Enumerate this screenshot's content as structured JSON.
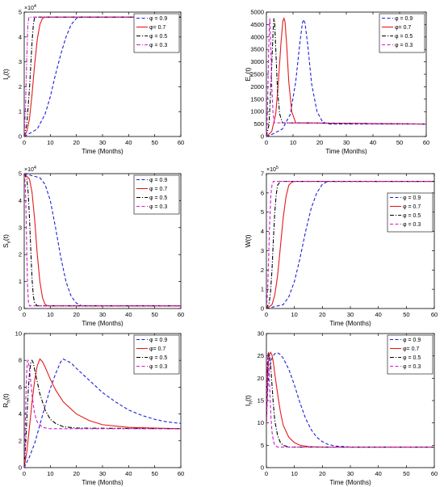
{
  "chart_data": [
    {
      "type": "line",
      "panel": "I_v",
      "xlabel": "Time (Months)",
      "ylabel_main": "I",
      "ylabel_sub": "v",
      "ylabel_tail": "(t)",
      "exponent": "×10",
      "exponent_power": "4",
      "xlim": [
        0,
        60
      ],
      "ylim": [
        0,
        5
      ],
      "xticks": [
        0,
        10,
        20,
        30,
        40,
        50,
        60
      ],
      "yticks": [
        0,
        1,
        2,
        3,
        4,
        5
      ],
      "legend_position": "top-right",
      "series": [
        {
          "name": "φ = 0.9",
          "color": "#1f1fd6",
          "dash": "dash",
          "x": [
            0,
            5,
            8,
            10,
            12,
            14,
            16,
            18,
            20,
            22,
            24,
            60
          ],
          "y": [
            0,
            0.3,
            0.9,
            1.6,
            2.5,
            3.3,
            4.0,
            4.5,
            4.75,
            4.8,
            4.8,
            4.8
          ]
        },
        {
          "name": "φ= 0.7",
          "color": "#e41a1a",
          "dash": "solid",
          "x": [
            0,
            1,
            2,
            3,
            4,
            5,
            6,
            7,
            8,
            9,
            60
          ],
          "y": [
            0,
            0.2,
            0.7,
            1.7,
            2.9,
            3.9,
            4.5,
            4.75,
            4.8,
            4.8,
            4.8
          ]
        },
        {
          "name": "φ = 0.5",
          "color": "#000000",
          "dash": "dashdot",
          "x": [
            0,
            1,
            2,
            3,
            3.5,
            4,
            60
          ],
          "y": [
            0,
            0.5,
            1.9,
            3.8,
            4.5,
            4.8,
            4.8
          ]
        },
        {
          "name": "φ = 0.3",
          "color": "#d01ad0",
          "dash": "dashdot",
          "x": [
            0,
            0.5,
            1,
            1.4,
            1.8,
            60
          ],
          "y": [
            0,
            1.2,
            3.2,
            4.5,
            4.8,
            4.8
          ]
        }
      ]
    },
    {
      "type": "line",
      "panel": "E_v",
      "xlabel": "Time (Months)",
      "ylabel_main": "E",
      "ylabel_sub": "v",
      "ylabel_tail": "(t)",
      "exponent": "",
      "exponent_power": "",
      "xlim": [
        0,
        60
      ],
      "ylim": [
        0,
        5000
      ],
      "xticks": [
        0,
        10,
        20,
        30,
        40,
        50,
        60
      ],
      "yticks": [
        0,
        500,
        1000,
        1500,
        2000,
        2500,
        3000,
        3500,
        4000,
        4500,
        5000
      ],
      "legend_position": "top-right",
      "series": [
        {
          "name": "φ = 0.9",
          "color": "#1f1fd6",
          "dash": "dash",
          "x": [
            0,
            2,
            6,
            9,
            11,
            12.5,
            13.5,
            14,
            14.5,
            15.5,
            17,
            19,
            21,
            23,
            60
          ],
          "y": [
            0,
            80,
            300,
            900,
            2200,
            3700,
            4550,
            4700,
            4550,
            3700,
            2100,
            1000,
            600,
            500,
            500
          ]
        },
        {
          "name": "φ= 0.7",
          "color": "#e41a1a",
          "dash": "solid",
          "x": [
            0,
            2,
            3.5,
            4.5,
            5.5,
            6.2,
            6.6,
            7,
            7.6,
            8.4,
            9.5,
            11,
            60
          ],
          "y": [
            0,
            200,
            900,
            2200,
            3800,
            4650,
            4750,
            4600,
            3700,
            2200,
            1000,
            550,
            500
          ]
        },
        {
          "name": "φ = 0.5",
          "color": "#000000",
          "dash": "dashdot",
          "x": [
            0,
            1,
            1.8,
            2.5,
            2.8,
            3.1,
            3.6,
            4.2,
            5,
            6,
            60
          ],
          "y": [
            0,
            500,
            2300,
            4200,
            4750,
            4600,
            3300,
            1800,
            900,
            550,
            500
          ]
        },
        {
          "name": "φ = 0.3",
          "color": "#d01ad0",
          "dash": "dash",
          "x": [
            0,
            0.4,
            0.8,
            1.1,
            1.3,
            1.6,
            2,
            2.5,
            3,
            60
          ],
          "y": [
            0,
            1000,
            3200,
            4500,
            4750,
            3800,
            2100,
            900,
            550,
            500
          ]
        }
      ]
    },
    {
      "type": "line",
      "panel": "S_v",
      "xlabel": "Time (Months)",
      "ylabel_main": "S",
      "ylabel_sub": "v",
      "ylabel_tail": "(t)",
      "exponent": "×10",
      "exponent_power": "4",
      "xlim": [
        0,
        60
      ],
      "ylim": [
        0,
        5
      ],
      "xticks": [
        0,
        10,
        20,
        30,
        40,
        50,
        60
      ],
      "yticks": [
        0,
        1,
        2,
        3,
        4,
        5
      ],
      "legend_position": "top-right",
      "series": [
        {
          "name": "φ = 0.9",
          "color": "#1f1fd6",
          "dash": "dash",
          "x": [
            0,
            6,
            8,
            10,
            12,
            14,
            16,
            18,
            20,
            22,
            60
          ],
          "y": [
            5,
            4.85,
            4.6,
            4.0,
            3.0,
            1.9,
            1.0,
            0.45,
            0.2,
            0.1,
            0.1
          ]
        },
        {
          "name": "φ = 0.7",
          "color": "#e41a1a",
          "dash": "solid",
          "x": [
            0,
            2,
            3,
            4,
            5,
            6,
            7,
            8,
            9,
            60
          ],
          "y": [
            5,
            4.8,
            4.3,
            3.3,
            2.0,
            1.0,
            0.4,
            0.15,
            0.1,
            0.1
          ]
        },
        {
          "name": "φ = 0.5",
          "color": "#000000",
          "dash": "dashdot",
          "x": [
            0,
            1,
            1.5,
            2,
            2.5,
            3,
            3.5,
            4,
            5,
            60
          ],
          "y": [
            5,
            4.8,
            4.3,
            3.4,
            2.2,
            1.1,
            0.45,
            0.2,
            0.1,
            0.1
          ]
        },
        {
          "name": "φ = 0.3",
          "color": "#d01ad0",
          "dash": "dash",
          "x": [
            0,
            0.4,
            0.7,
            1,
            1.3,
            1.6,
            2,
            60
          ],
          "y": [
            5,
            4.6,
            3.6,
            2.0,
            0.8,
            0.25,
            0.1,
            0.1
          ]
        }
      ]
    },
    {
      "type": "line",
      "panel": "W",
      "xlabel": "Time (Months)",
      "ylabel_main": "W",
      "ylabel_sub": "",
      "ylabel_tail": "(t)",
      "exponent": "×10",
      "exponent_power": "5",
      "xlim": [
        0,
        60
      ],
      "ylim": [
        0,
        7
      ],
      "xticks": [
        0,
        10,
        20,
        30,
        40,
        50,
        60
      ],
      "yticks": [
        0,
        1,
        2,
        3,
        4,
        5,
        6,
        7
      ],
      "legend_position": "right",
      "series": [
        {
          "name": "φ = 0.9",
          "color": "#1f1fd6",
          "dash": "dash",
          "x": [
            0,
            6,
            8,
            10,
            12,
            14,
            16,
            18,
            20,
            22,
            24,
            60
          ],
          "y": [
            0,
            0.2,
            0.6,
            1.4,
            2.6,
            4.0,
            5.2,
            6.0,
            6.45,
            6.6,
            6.6,
            6.6
          ]
        },
        {
          "name": "φ = 0.7",
          "color": "#e41a1a",
          "dash": "solid",
          "x": [
            0,
            2,
            3,
            4,
            5,
            6,
            7,
            8,
            9,
            10,
            60
          ],
          "y": [
            0,
            0.2,
            0.7,
            1.7,
            3.2,
            4.7,
            5.8,
            6.4,
            6.55,
            6.6,
            6.6
          ]
        },
        {
          "name": "φ = 0.5",
          "color": "#000000",
          "dash": "dashdot",
          "x": [
            0,
            1,
            1.5,
            2,
            2.5,
            3,
            3.5,
            4,
            5,
            60
          ],
          "y": [
            0,
            0.3,
            0.9,
            2.0,
            3.6,
            5.0,
            5.9,
            6.4,
            6.6,
            6.6
          ]
        },
        {
          "name": "φ = 0.3",
          "color": "#d01ad0",
          "dash": "dash",
          "x": [
            0,
            0.4,
            0.8,
            1.2,
            1.6,
            2,
            2.5,
            60
          ],
          "y": [
            0,
            0.8,
            2.6,
            4.6,
            5.9,
            6.4,
            6.6,
            6.6
          ]
        }
      ]
    },
    {
      "type": "line",
      "panel": "R_h",
      "xlabel": "Time (Months)",
      "ylabel_main": "R",
      "ylabel_sub": "h",
      "ylabel_tail": "(t)",
      "exponent": "",
      "exponent_power": "",
      "xlim": [
        0,
        60
      ],
      "ylim": [
        0,
        10
      ],
      "xticks": [
        0,
        10,
        20,
        30,
        40,
        50,
        60
      ],
      "yticks": [
        0,
        2,
        4,
        6,
        8,
        10
      ],
      "legend_position": "top-right",
      "series": [
        {
          "name": "φ = 0.9",
          "color": "#1f1fd6",
          "dash": "dash",
          "x": [
            0,
            2,
            4,
            6,
            8,
            10,
            12,
            14,
            15,
            16,
            18,
            20,
            25,
            30,
            35,
            40,
            45,
            50,
            55,
            60
          ],
          "y": [
            0,
            0.8,
            1.8,
            3.2,
            4.6,
            5.9,
            7.0,
            7.9,
            8.1,
            8.0,
            7.8,
            7.4,
            6.5,
            5.6,
            4.9,
            4.3,
            3.9,
            3.6,
            3.4,
            3.3
          ]
        },
        {
          "name": "φ= 0.7",
          "color": "#e41a1a",
          "dash": "solid",
          "x": [
            0,
            1,
            2,
            3,
            4,
            5,
            6,
            7,
            8,
            10,
            12,
            15,
            20,
            25,
            30,
            40,
            50,
            60
          ],
          "y": [
            0,
            1.2,
            3.0,
            4.9,
            6.5,
            7.6,
            8.1,
            7.9,
            7.5,
            6.6,
            5.8,
            4.9,
            4.0,
            3.5,
            3.2,
            3.0,
            2.95,
            2.9
          ]
        },
        {
          "name": "φ = 0.5",
          "color": "#000000",
          "dash": "dashdot",
          "x": [
            0,
            0.5,
            1,
            1.5,
            2,
            2.5,
            3,
            3.5,
            4,
            5,
            6,
            8,
            10,
            12,
            15,
            20,
            60
          ],
          "y": [
            0,
            1.6,
            3.6,
            5.6,
            7.0,
            7.8,
            8.0,
            7.8,
            7.3,
            6.4,
            5.5,
            4.3,
            3.6,
            3.3,
            3.05,
            2.95,
            2.9
          ]
        },
        {
          "name": "φ = 0.3",
          "color": "#d01ad0",
          "dash": "dash",
          "x": [
            0,
            0.3,
            0.6,
            0.9,
            1.2,
            1.5,
            2,
            2.5,
            3,
            4,
            5,
            7,
            10,
            60
          ],
          "y": [
            0,
            2.0,
            4.8,
            6.9,
            7.9,
            8.0,
            7.4,
            6.4,
            5.4,
            4.0,
            3.4,
            3.0,
            2.9,
            2.9
          ]
        }
      ]
    },
    {
      "type": "line",
      "panel": "I_h",
      "xlabel": "Time (Months)",
      "ylabel_main": "I",
      "ylabel_sub": "h",
      "ylabel_tail": "(t)",
      "exponent": "",
      "exponent_power": "",
      "xlim": [
        0,
        60
      ],
      "ylim": [
        0,
        30
      ],
      "xticks": [
        0,
        10,
        20,
        30,
        40,
        50,
        60
      ],
      "yticks": [
        0,
        5,
        10,
        15,
        20,
        25,
        30
      ],
      "legend_position": "top-right",
      "series": [
        {
          "name": "φ = 0.9",
          "color": "#1f1fd6",
          "dash": "dash",
          "x": [
            0,
            0.5,
            1,
            2,
            3,
            4,
            5,
            6,
            8,
            10,
            12,
            14,
            16,
            18,
            20,
            22,
            25,
            30,
            40,
            60
          ],
          "y": [
            10,
            18,
            22,
            24.5,
            25.5,
            25.7,
            25.3,
            24.5,
            22,
            18.5,
            14.5,
            11,
            8.5,
            6.8,
            5.8,
            5.2,
            4.8,
            4.6,
            4.6,
            4.6
          ]
        },
        {
          "name": "φ= 0.7",
          "color": "#e41a1a",
          "dash": "solid",
          "x": [
            0,
            0.3,
            0.6,
            1,
            1.5,
            2,
            2.5,
            3,
            4,
            5,
            6,
            8,
            10,
            12,
            15,
            20,
            30,
            60
          ],
          "y": [
            10,
            18,
            23,
            25.2,
            25.8,
            25.2,
            23.5,
            21,
            16.5,
            12.5,
            9.5,
            6.8,
            5.6,
            5.0,
            4.7,
            4.6,
            4.6,
            4.6
          ]
        },
        {
          "name": "φ = 0.5",
          "color": "#000000",
          "dash": "dashdot",
          "x": [
            0,
            0.2,
            0.5,
            0.8,
            1.1,
            1.5,
            2,
            2.5,
            3,
            4,
            5,
            6,
            8,
            60
          ],
          "y": [
            10,
            19,
            24,
            25.6,
            25.2,
            23,
            18.5,
            14,
            10.5,
            7.2,
            5.6,
            5.0,
            4.6,
            4.6
          ]
        },
        {
          "name": "φ = 0.3",
          "color": "#d01ad0",
          "dash": "dash",
          "x": [
            0,
            0.15,
            0.3,
            0.5,
            0.7,
            1,
            1.3,
            1.6,
            2,
            2.5,
            3,
            4,
            60
          ],
          "y": [
            10,
            18,
            23,
            25.5,
            25,
            21,
            16,
            11.5,
            8,
            6,
            5,
            4.6,
            4.6
          ]
        }
      ]
    }
  ]
}
